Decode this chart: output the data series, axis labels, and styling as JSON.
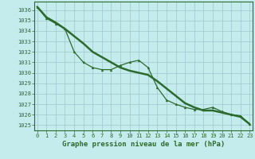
{
  "title": "Graphe pression niveau de la mer (hPa)",
  "x_values": [
    0,
    1,
    2,
    3,
    4,
    5,
    6,
    7,
    8,
    9,
    10,
    11,
    12,
    13,
    14,
    15,
    16,
    17,
    18,
    19,
    20,
    21,
    22,
    23
  ],
  "series_smooth": [
    1036.3,
    1035.3,
    1034.8,
    1034.2,
    1033.5,
    1032.8,
    1032.0,
    1031.5,
    1031.0,
    1030.5,
    1030.2,
    1030.0,
    1029.8,
    1029.2,
    1028.5,
    1027.8,
    1027.1,
    1026.7,
    1026.4,
    1026.4,
    1026.2,
    1026.0,
    1025.8,
    1025.1
  ],
  "series_marked": [
    1036.3,
    1035.2,
    1034.7,
    1034.2,
    1032.0,
    1031.0,
    1030.5,
    1030.3,
    1030.3,
    1030.7,
    1031.0,
    1031.2,
    1030.5,
    1028.6,
    1027.4,
    1027.0,
    1026.7,
    1026.5,
    1026.5,
    1026.7,
    1026.3,
    1026.0,
    1025.9,
    1025.1
  ],
  "ylim": [
    1024.5,
    1036.8
  ],
  "xlim": [
    -0.3,
    23.3
  ],
  "yticks": [
    1025,
    1026,
    1027,
    1028,
    1029,
    1030,
    1031,
    1032,
    1033,
    1034,
    1035,
    1036
  ],
  "line_color": "#2d6a2d",
  "bg_color": "#c5eced",
  "grid_color": "#9ec8cc",
  "tick_fontsize": 5.0,
  "title_fontsize": 6.5
}
